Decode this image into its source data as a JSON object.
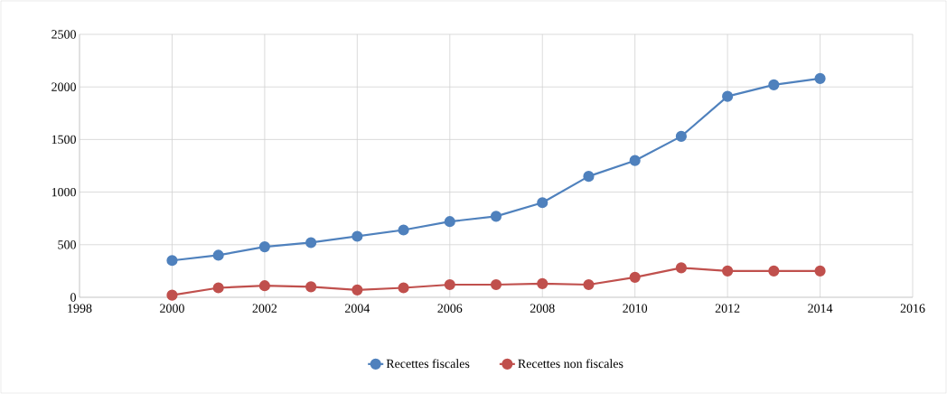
{
  "chart_data": {
    "type": "line",
    "x": [
      2000,
      2001,
      2002,
      2003,
      2004,
      2005,
      2006,
      2007,
      2008,
      2009,
      2010,
      2011,
      2012,
      2013,
      2014
    ],
    "series": [
      {
        "name": "Recettes fiscales",
        "color": "#4f81bd",
        "values": [
          350,
          400,
          480,
          520,
          580,
          640,
          720,
          770,
          900,
          1150,
          1300,
          1530,
          1910,
          2020,
          2080
        ]
      },
      {
        "name": "Recettes non fiscales",
        "color": "#c0504d",
        "values": [
          20,
          90,
          110,
          100,
          70,
          90,
          120,
          120,
          130,
          120,
          190,
          280,
          250,
          250,
          250
        ]
      }
    ],
    "xlim": [
      1998,
      2016
    ],
    "xticks": [
      1998,
      2000,
      2002,
      2004,
      2006,
      2008,
      2010,
      2012,
      2014,
      2016
    ],
    "ylim": [
      0,
      2500
    ],
    "yticks": [
      0,
      500,
      1000,
      1500,
      2000,
      2500
    ],
    "grid": true,
    "legend": "bottom",
    "marker": "circle",
    "line_style": "solid"
  }
}
